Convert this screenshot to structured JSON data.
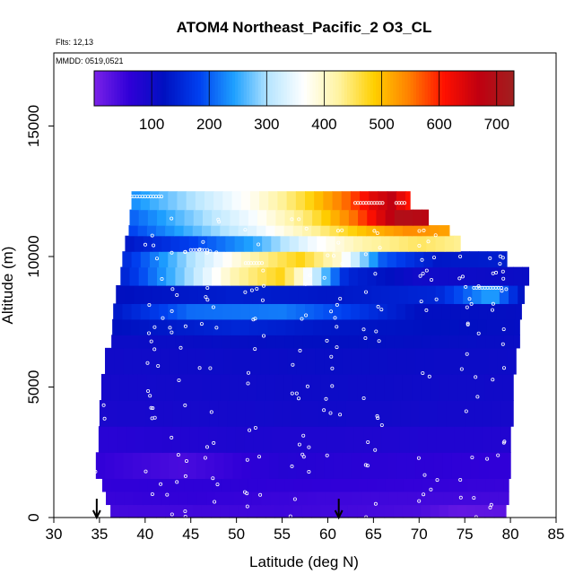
{
  "chart_data": {
    "type": "heatmap",
    "title": "ATOM4 Northeast_Pacific_2 O3_CL",
    "annotations": [
      "Flts: 12,13",
      "MMDD: 0519,0521"
    ],
    "xlabel": "Latitude (deg N)",
    "ylabel": "Altitude (m)",
    "xlim": [
      30,
      85
    ],
    "ylim": [
      0,
      17800
    ],
    "xticks": [
      "30",
      "35",
      "40",
      "45",
      "50",
      "55",
      "60",
      "65",
      "70",
      "75",
      "80",
      "85"
    ],
    "yticks": [
      "0",
      "5000",
      "10000",
      "15000"
    ],
    "colorbar": {
      "min": 0,
      "max": 730,
      "ticks": [
        "100",
        "200",
        "300",
        "400",
        "500",
        "600",
        "700"
      ],
      "colors": [
        "#7b22e8",
        "#3000d8",
        "#0010c0",
        "#0040f0",
        "#1ea0ff",
        "#b8e6ff",
        "#ffffff",
        "#fff3a0",
        "#ffd000",
        "#ff8000",
        "#ff1000",
        "#c00010",
        "#a02020"
      ]
    },
    "markers": [
      {
        "x": 34.7,
        "label": "down-arrow"
      },
      {
        "x": 61.2,
        "label": "down-arrow"
      }
    ],
    "layers": [
      {
        "alt": 0,
        "top": 500,
        "x0": 36.2,
        "x1": 79.5,
        "v": 40,
        "grad": [
          [
            36.2,
            45
          ],
          [
            55,
            50
          ],
          [
            70,
            40
          ],
          [
            74,
            20
          ],
          [
            79.5,
            25
          ]
        ]
      },
      {
        "alt": 500,
        "top": 1000,
        "x0": 35.7,
        "x1": 79.8,
        "v": 55,
        "grad": [
          [
            35.7,
            55
          ],
          [
            45,
            60
          ],
          [
            60,
            50
          ],
          [
            79.8,
            45
          ]
        ]
      },
      {
        "alt": 1000,
        "top": 1500,
        "x0": 35.3,
        "x1": 79.8,
        "v": 60,
        "grad": [
          [
            35.3,
            60
          ],
          [
            50,
            65
          ],
          [
            79.8,
            55
          ]
        ]
      },
      {
        "alt": 1500,
        "top": 2500,
        "x0": 34.6,
        "x1": 80.0,
        "v": 65,
        "grad": [
          [
            34.6,
            60
          ],
          [
            44,
            40
          ],
          [
            55,
            75
          ],
          [
            80,
            60
          ]
        ]
      },
      {
        "alt": 2500,
        "top": 3500,
        "x0": 34.9,
        "x1": 80.0,
        "v": 80,
        "grad": [
          [
            34.9,
            70
          ],
          [
            50,
            85
          ],
          [
            80,
            80
          ]
        ]
      },
      {
        "alt": 3500,
        "top": 4500,
        "x0": 35.0,
        "x1": 80.3,
        "v": 95,
        "grad": [
          [
            35,
            90
          ],
          [
            60,
            100
          ],
          [
            80.3,
            95
          ]
        ]
      },
      {
        "alt": 4500,
        "top": 5500,
        "x0": 35.2,
        "x1": 80.3,
        "v": 100,
        "grad": [
          [
            35.2,
            95
          ],
          [
            60,
            105
          ],
          [
            80.3,
            100
          ]
        ]
      },
      {
        "alt": 5500,
        "top": 6500,
        "x0": 35.6,
        "x1": 80.6,
        "v": 105,
        "grad": [
          [
            35.6,
            100
          ],
          [
            60,
            110
          ],
          [
            80.6,
            105
          ]
        ]
      },
      {
        "alt": 6500,
        "top": 7000,
        "x0": 36.3,
        "x1": 81.0,
        "v": 110,
        "grad": [
          [
            36.3,
            105
          ],
          [
            60,
            120
          ],
          [
            81,
            110
          ]
        ]
      },
      {
        "alt": 7000,
        "top": 7600,
        "x0": 36.4,
        "x1": 81.0,
        "v": 115,
        "grad": [
          [
            36.4,
            120
          ],
          [
            50,
            150
          ],
          [
            60,
            130
          ],
          [
            81,
            115
          ]
        ]
      },
      {
        "alt": 7600,
        "top": 8200,
        "x0": 36.5,
        "x1": 81.2,
        "v": 130,
        "grad": [
          [
            36.5,
            130
          ],
          [
            45,
            210
          ],
          [
            55,
            220
          ],
          [
            62,
            180
          ],
          [
            70,
            120
          ],
          [
            81.2,
            115
          ]
        ]
      },
      {
        "alt": 8200,
        "top": 8900,
        "x0": 36.8,
        "x1": 81.5,
        "v": 120,
        "grad": [
          [
            36.8,
            120
          ],
          [
            50,
            140
          ],
          [
            60,
            130
          ],
          [
            72,
            150
          ],
          [
            78,
            250
          ],
          [
            81.5,
            115
          ]
        ]
      },
      {
        "alt": 8900,
        "top": 9600,
        "x0": 37.3,
        "x1": 82.0,
        "v": 140,
        "grad": [
          [
            37.3,
            140
          ],
          [
            45,
            300
          ],
          [
            50,
            420
          ],
          [
            55,
            480
          ],
          [
            58,
            350
          ],
          [
            62,
            150
          ],
          [
            70,
            100
          ],
          [
            82,
            110
          ]
        ]
      },
      {
        "alt": 9600,
        "top": 10200,
        "x0": 37.5,
        "x1": 79.6,
        "v": 160,
        "grad": [
          [
            37.5,
            150
          ],
          [
            45,
            300
          ],
          [
            52,
            420
          ],
          [
            57,
            480
          ],
          [
            61,
            400
          ],
          [
            66,
            200
          ],
          [
            72,
            130
          ],
          [
            79.6,
            140
          ]
        ]
      },
      {
        "alt": 10200,
        "top": 10800,
        "x0": 37.8,
        "x1": 74.5,
        "v": 200,
        "grad": [
          [
            37.8,
            130
          ],
          [
            45,
            180
          ],
          [
            52,
            250
          ],
          [
            58,
            350
          ],
          [
            64,
            420
          ],
          [
            70,
            450
          ],
          [
            74.5,
            430
          ]
        ]
      },
      {
        "alt": 10800,
        "top": 11200,
        "x0": 38.2,
        "x1": 73.3,
        "v": 260,
        "grad": [
          [
            38.2,
            180
          ],
          [
            45,
            260
          ],
          [
            52,
            340
          ],
          [
            58,
            420
          ],
          [
            64,
            500
          ],
          [
            69,
            540
          ],
          [
            73.3,
            520
          ]
        ]
      },
      {
        "alt": 11200,
        "top": 11800,
        "x0": 38.3,
        "x1": 71.0,
        "v": 320,
        "grad": [
          [
            38.3,
            200
          ],
          [
            45,
            280
          ],
          [
            52,
            360
          ],
          [
            58,
            450
          ],
          [
            63,
            560
          ],
          [
            66,
            650
          ],
          [
            68,
            700
          ],
          [
            71,
            680
          ]
        ]
      },
      {
        "alt": 11800,
        "top": 12500,
        "x0": 38.5,
        "x1": 69.0,
        "v": 350,
        "grad": [
          [
            38.5,
            230
          ],
          [
            45,
            300
          ],
          [
            52,
            380
          ],
          [
            57,
            460
          ],
          [
            62,
            560
          ],
          [
            65,
            640
          ],
          [
            67,
            670
          ],
          [
            69,
            600
          ]
        ]
      }
    ]
  }
}
